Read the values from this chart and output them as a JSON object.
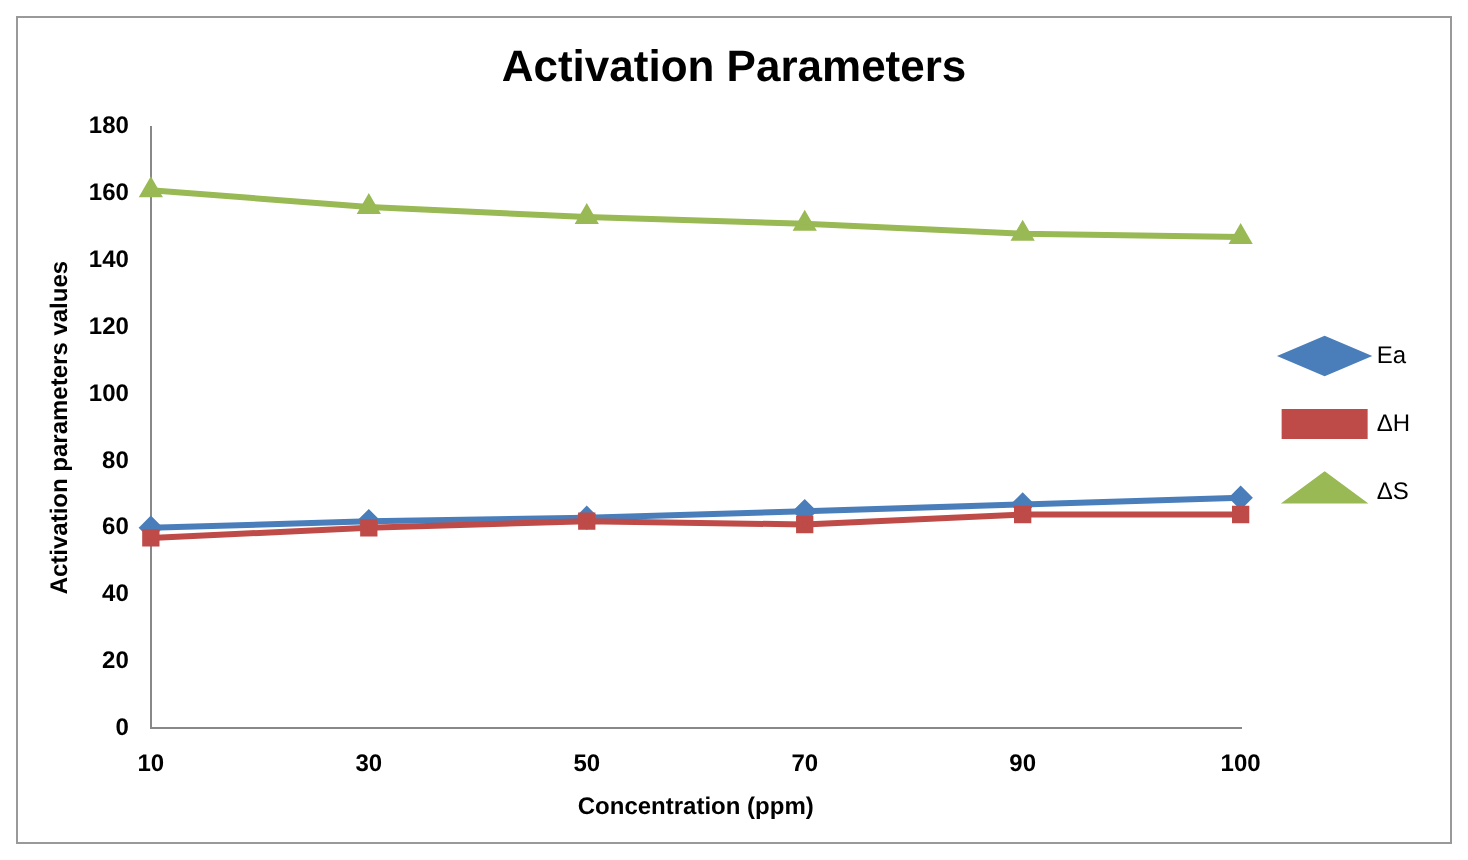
{
  "chart_data": {
    "type": "line",
    "title": "Activation Parameters",
    "xlabel": "Concentration (ppm)",
    "ylabel": "Activation parameters values",
    "categories": [
      "10",
      "30",
      "50",
      "70",
      "90",
      "100"
    ],
    "series": [
      {
        "name": "Ea",
        "color": "#4a7ebb",
        "marker": "diamond",
        "values": [
          60,
          62,
          63,
          65,
          67,
          69
        ]
      },
      {
        "name": "ΔH",
        "color": "#be4b48",
        "marker": "square",
        "values": [
          57,
          60,
          62,
          61,
          64,
          64
        ]
      },
      {
        "name": "ΔS",
        "color": "#98b954",
        "marker": "triangle",
        "values": [
          161,
          156,
          153,
          151,
          148,
          147
        ]
      }
    ],
    "ylim": [
      0,
      180
    ],
    "yticks": [
      0,
      20,
      40,
      60,
      80,
      100,
      120,
      140,
      160,
      180
    ],
    "grid": false,
    "legend": "right",
    "line_style": "solid"
  }
}
